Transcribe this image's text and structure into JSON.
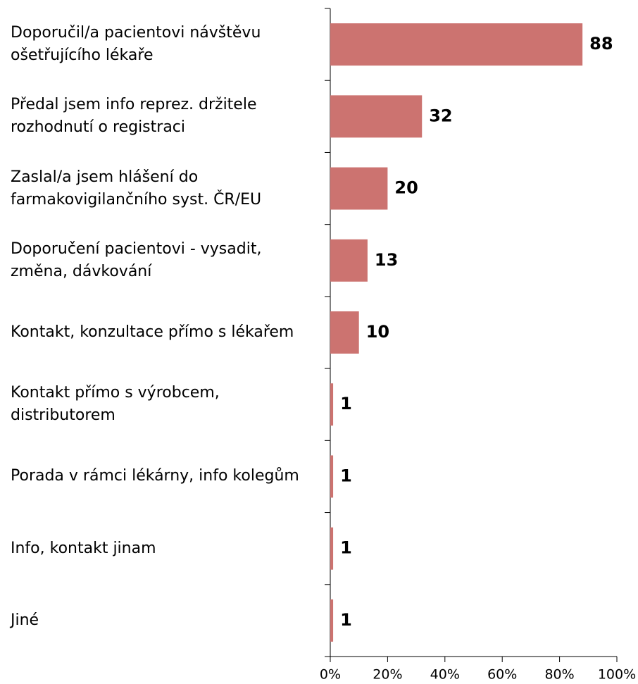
{
  "chart_data": {
    "type": "barh",
    "categories": [
      "Doporučil/a pacientovi návštěvu ošetřujícího lékaře",
      "Předal jsem info reprez. držitele rozhodnutí o registraci",
      "Zaslal/a jsem hlášení do farmakovigilančního syst. ČR/EU",
      "Doporučení pacientovi - vysadit, změna, dávkování",
      "Kontakt, konzultace přímo s lékařem",
      "Kontakt přímo s výrobcem, distributorem",
      "Porada v rámci lékárny, info kolegům",
      "Info, kontakt jinam",
      "Jiné"
    ],
    "values": [
      88,
      32,
      20,
      13,
      10,
      1,
      1,
      1,
      1
    ],
    "color": "#cc7370",
    "xlim": [
      0,
      100
    ],
    "xticks": [
      {
        "value": 0,
        "label": "0%"
      },
      {
        "value": 20,
        "label": "20%"
      },
      {
        "value": 40,
        "label": "40%"
      },
      {
        "value": 60,
        "label": "60%"
      },
      {
        "value": 80,
        "label": "80%"
      },
      {
        "value": 100,
        "label": "100%"
      }
    ]
  }
}
